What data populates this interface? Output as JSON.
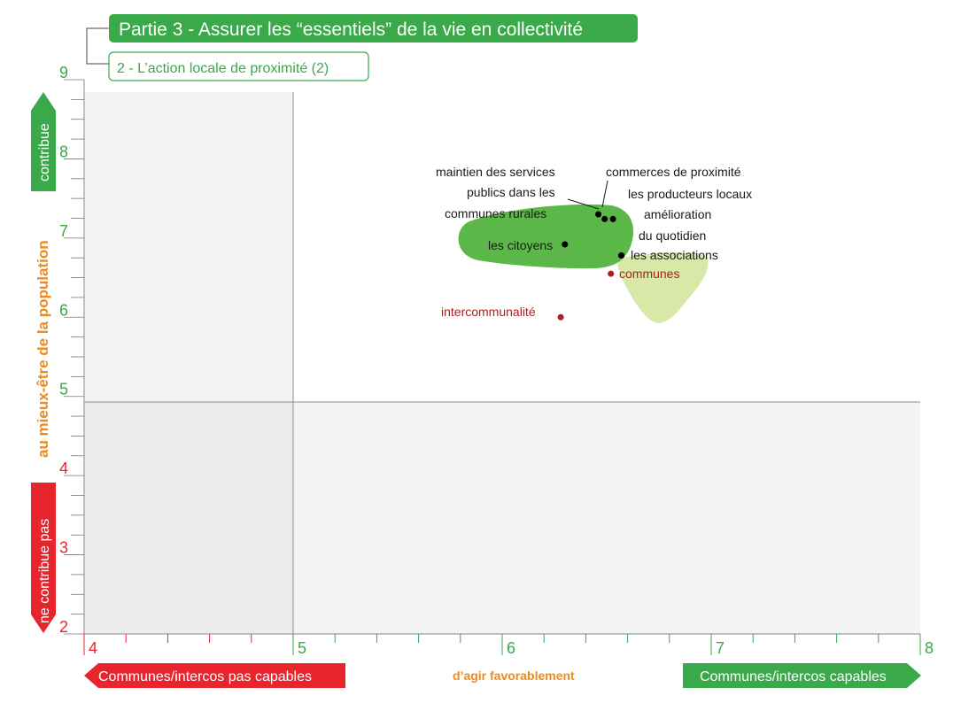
{
  "header": {
    "title": "Partie 3 - Assurer les “essentiels” de la vie en collectivité",
    "subtitle": "2 - L’action locale de proximité (2)"
  },
  "y_axis": {
    "top_label": "contribue",
    "bottom_label": "ne contribue pas",
    "middle_label": "au mieux-être de la population"
  },
  "x_axis": {
    "left_label": "Communes/intercos pas capables",
    "middle_label": "d’agir favorablement",
    "right_label": "Communes/intercos capables"
  },
  "colors": {
    "green": "#3aa94a",
    "red": "#e8242d",
    "orange": "#ef8a1f",
    "dark_green_blob": "#5cb749",
    "light_green_blob": "#d8e6a4",
    "quadrant_gray": "#f2f2f4",
    "dark_red_point": "#a8201f"
  },
  "chart_data": {
    "type": "scatter",
    "xlim": [
      4,
      8
    ],
    "ylim": [
      2,
      9
    ],
    "x_ticks": [
      "4",
      "5",
      "6",
      "7",
      "8"
    ],
    "y_ticks": [
      "2",
      "3",
      "4",
      "5",
      "6",
      "7",
      "8",
      "9"
    ],
    "quadrant_lines": {
      "x": 5,
      "y": 4.85
    },
    "points": [
      {
        "label": "maintien des services publics dans les communes rurales",
        "x": 6.46,
        "y": 7.3,
        "color": "#000000"
      },
      {
        "label": "commerces de proximité",
        "x": 6.49,
        "y": 7.24,
        "color": "#000000"
      },
      {
        "label": "les producteurs locaux",
        "x": 6.53,
        "y": 7.24,
        "color": "#000000"
      },
      {
        "label": "amélioration du quotidien",
        "x": 6.57,
        "y": 6.78,
        "color": "#000000"
      },
      {
        "label": "les associations",
        "x": 6.57,
        "y": 6.78,
        "color": "#000000"
      },
      {
        "label": "les citoyens",
        "x": 6.3,
        "y": 6.92,
        "color": "#000000"
      },
      {
        "label": "communes",
        "x": 6.52,
        "y": 6.55,
        "color": "#a8201f"
      },
      {
        "label": "intercommunalité",
        "x": 6.28,
        "y": 6.0,
        "color": "#a8201f"
      }
    ],
    "point_labels": {
      "maintien": [
        "maintien des services",
        "publics dans les",
        "communes rurales"
      ],
      "commerces": "commerces de proximité",
      "producteurs": "les producteurs locaux",
      "amelioration": [
        "amélioration",
        "du quotidien"
      ],
      "associations": "les associations",
      "citoyens": "les citoyens",
      "communes": "communes",
      "intercommunalite": "intercommunalité"
    }
  }
}
